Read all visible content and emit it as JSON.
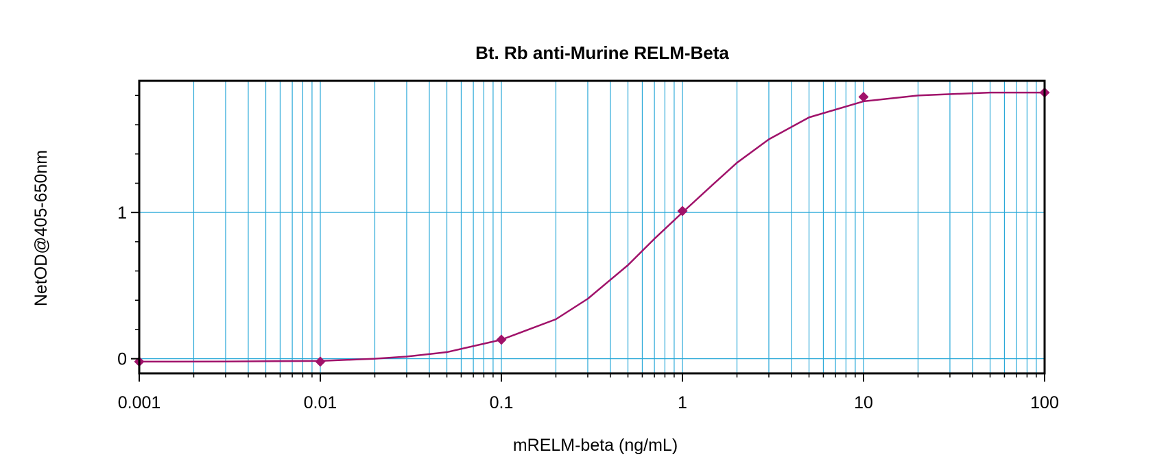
{
  "chart_data": {
    "type": "scatter",
    "title": "Bt. Rb anti-Murine RELM-Beta",
    "xlabel": "mRELM-beta (ng/mL)",
    "ylabel": "NetOD@405-650nm",
    "x_scale": "log",
    "xlim": [
      0.001,
      100
    ],
    "ylim": [
      -0.1,
      1.9
    ],
    "x_ticks": [
      0.001,
      0.01,
      0.1,
      1,
      10,
      100
    ],
    "x_tick_labels": [
      "0.001",
      "0.01",
      "0.1",
      "1",
      "10",
      "100"
    ],
    "y_ticks": [
      0,
      1
    ],
    "y_tick_labels": [
      "0",
      "1"
    ],
    "grid": true,
    "colors": {
      "grid": "#29a8d8",
      "series": "#a0126a",
      "frame": "#000000"
    },
    "series": [
      {
        "points": [
          {
            "x": 0.001,
            "y": -0.02
          },
          {
            "x": 0.01,
            "y": -0.02
          },
          {
            "x": 0.1,
            "y": 0.13
          },
          {
            "x": 1,
            "y": 1.01
          },
          {
            "x": 10,
            "y": 1.79
          },
          {
            "x": 100,
            "y": 1.82
          }
        ]
      }
    ],
    "fit_curve": {
      "points": [
        {
          "x": 0.001,
          "y": -0.02
        },
        {
          "x": 0.003,
          "y": -0.019
        },
        {
          "x": 0.01,
          "y": -0.015
        },
        {
          "x": 0.02,
          "y": 0.0
        },
        {
          "x": 0.03,
          "y": 0.015
        },
        {
          "x": 0.05,
          "y": 0.045
        },
        {
          "x": 0.1,
          "y": 0.13
        },
        {
          "x": 0.2,
          "y": 0.27
        },
        {
          "x": 0.3,
          "y": 0.41
        },
        {
          "x": 0.5,
          "y": 0.64
        },
        {
          "x": 0.7,
          "y": 0.82
        },
        {
          "x": 1,
          "y": 1.0
        },
        {
          "x": 1.5,
          "y": 1.2
        },
        {
          "x": 2,
          "y": 1.34
        },
        {
          "x": 3,
          "y": 1.5
        },
        {
          "x": 5,
          "y": 1.65
        },
        {
          "x": 10,
          "y": 1.76
        },
        {
          "x": 20,
          "y": 1.8
        },
        {
          "x": 50,
          "y": 1.82
        },
        {
          "x": 100,
          "y": 1.82
        }
      ]
    }
  }
}
